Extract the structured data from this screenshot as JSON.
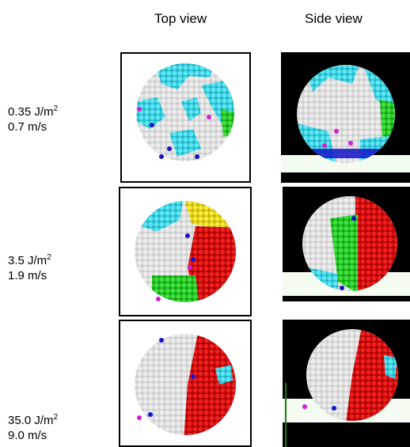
{
  "columns": {
    "top": "Top view",
    "side": "Side view"
  },
  "rows": [
    {
      "energy": "0.35 J/m",
      "energy_exp": "2",
      "velocity": "0.7 m/s"
    },
    {
      "energy": "3.5 J/m",
      "energy_exp": "2",
      "velocity": "1.9 m/s"
    },
    {
      "energy": "35.0 J/m",
      "energy_exp": "2",
      "velocity": "9.0 m/s"
    }
  ],
  "colors": {
    "white_grain": "#d8d8d8",
    "cyan": "#33d6e6",
    "green": "#22cc22",
    "red": "#e01010",
    "yellow": "#f2e020",
    "blue": "#1414c8",
    "magenta": "#d020d0",
    "floor": "#f4fbf0"
  }
}
